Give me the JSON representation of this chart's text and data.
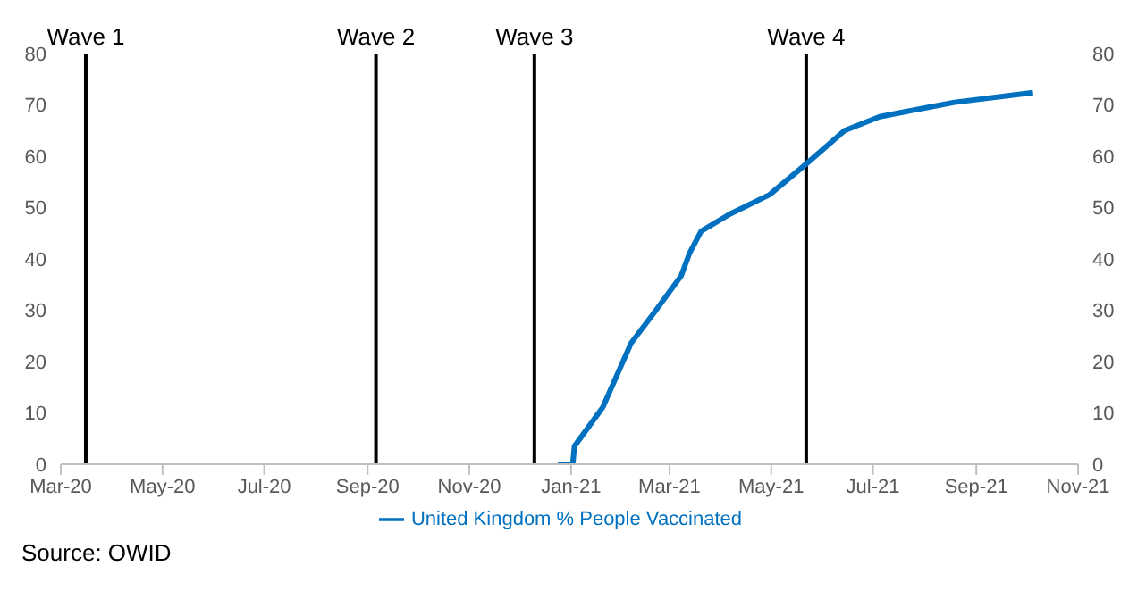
{
  "chart_data": {
    "type": "line",
    "x": [
      "2020-12-24",
      "2021-01-02",
      "2021-01-03",
      "2021-01-20",
      "2021-02-06",
      "2021-02-20",
      "2021-03-08",
      "2021-03-13",
      "2021-03-20",
      "2021-04-06",
      "2021-04-30",
      "2021-05-22",
      "2021-06-14",
      "2021-07-05",
      "2021-08-01",
      "2021-08-19",
      "2021-10-05"
    ],
    "series": [
      {
        "name": "United Kingdom % People Vaccinated",
        "color": "#0070c0",
        "values": [
          0,
          0,
          3.5,
          11.1,
          23.6,
          29.6,
          36.7,
          41.1,
          45.4,
          48.7,
          52.5,
          58.5,
          65,
          67.7,
          69.4,
          70.5,
          72.4
        ]
      }
    ],
    "xlim": [
      "2020-03",
      "2021-11"
    ],
    "xticks": [
      {
        "value": "2020-03",
        "label": "Mar-20"
      },
      {
        "value": "2020-05",
        "label": "May-20"
      },
      {
        "value": "2020-07",
        "label": "Jul-20"
      },
      {
        "value": "2020-09",
        "label": "Sep-20"
      },
      {
        "value": "2020-11",
        "label": "Nov-20"
      },
      {
        "value": "2021-01",
        "label": "Jan-21"
      },
      {
        "value": "2021-03",
        "label": "Mar-21"
      },
      {
        "value": "2021-05",
        "label": "May-21"
      },
      {
        "value": "2021-07",
        "label": "Jul-21"
      },
      {
        "value": "2021-09",
        "label": "Sep-21"
      },
      {
        "value": "2021-11",
        "label": "Nov-21"
      }
    ],
    "ylim": [
      0,
      80
    ],
    "yticks": [
      0,
      10,
      20,
      30,
      40,
      50,
      60,
      70,
      80
    ],
    "y2lim": [
      0,
      80
    ],
    "y2ticks": [
      0,
      10,
      20,
      30,
      40,
      50,
      60,
      70,
      80
    ],
    "ref_lines": [
      {
        "axis": "x",
        "value": "2020-03-16",
        "label": "Wave 1",
        "color": "#000000"
      },
      {
        "axis": "x",
        "value": "2020-09-06",
        "label": "Wave 2",
        "color": "#000000"
      },
      {
        "axis": "x",
        "value": "2020-12-10",
        "label": "Wave 3",
        "color": "#000000"
      },
      {
        "axis": "x",
        "value": "2021-05-22",
        "label": "Wave 4",
        "color": "#000000"
      }
    ],
    "legend": "bottom",
    "grid": false,
    "marker": "none",
    "line_style": "solid",
    "annotations": [
      "Source: OWID"
    ]
  }
}
